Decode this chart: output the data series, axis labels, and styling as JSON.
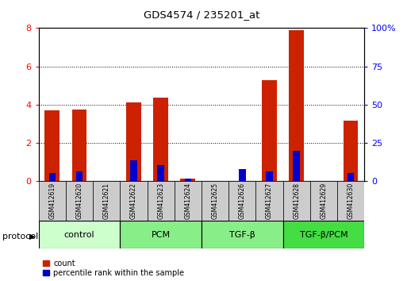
{
  "title": "GDS4574 / 235201_at",
  "samples": [
    "GSM412619",
    "GSM412620",
    "GSM412621",
    "GSM412622",
    "GSM412623",
    "GSM412624",
    "GSM412625",
    "GSM412626",
    "GSM412627",
    "GSM412628",
    "GSM412629",
    "GSM412630"
  ],
  "count_values": [
    3.7,
    3.75,
    0.0,
    4.1,
    4.35,
    0.12,
    0.0,
    0.0,
    5.3,
    7.9,
    0.0,
    3.15
  ],
  "percentile_pct": [
    5.5,
    6.5,
    0.0,
    13.5,
    10.5,
    1.5,
    0.0,
    8.0,
    6.5,
    20.0,
    0.0,
    5.5
  ],
  "groups": [
    {
      "label": "control",
      "start": 0,
      "end": 3,
      "color": "#ccffcc"
    },
    {
      "label": "PCM",
      "start": 3,
      "end": 6,
      "color": "#88ee88"
    },
    {
      "label": "TGF-β",
      "start": 6,
      "end": 9,
      "color": "#88ee88"
    },
    {
      "label": "TGF-β/PCM",
      "start": 9,
      "end": 12,
      "color": "#44dd44"
    }
  ],
  "ylim": [
    0,
    8
  ],
  "y2lim": [
    0,
    100
  ],
  "yticks": [
    0,
    2,
    4,
    6,
    8
  ],
  "y2ticks": [
    0,
    25,
    50,
    75,
    100
  ],
  "bar_color_red": "#cc2200",
  "bar_color_blue": "#0000cc",
  "bar_width": 0.55,
  "blue_bar_width": 0.25,
  "grid_color": "#000000",
  "bg_color": "#ffffff",
  "protocol_label": "protocol",
  "legend_count": "count",
  "legend_pct": "percentile rank within the sample",
  "sample_box_color": "#cccccc",
  "group_border_color": "#000000"
}
